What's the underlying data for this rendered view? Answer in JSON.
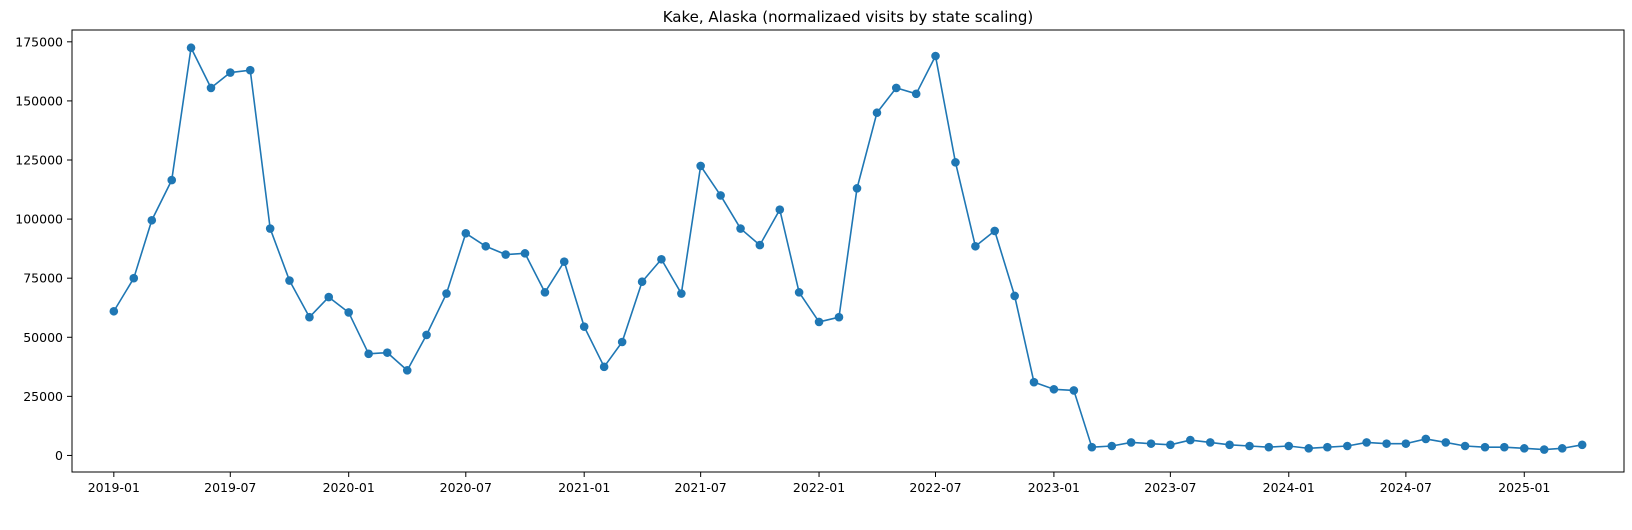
{
  "chart_data": {
    "type": "line",
    "title": "Kake, Alaska (normalizaed visits by state scaling)",
    "xlabel": "",
    "ylabel": "",
    "x_tick_labels": [
      "2019-01",
      "2019-07",
      "2020-01",
      "2020-07",
      "2021-01",
      "2021-07",
      "2022-01",
      "2022-07",
      "2023-01",
      "2023-07",
      "2024-01",
      "2024-07",
      "2025-01"
    ],
    "y_tick_labels": [
      "0",
      "25000",
      "50000",
      "75000",
      "100000",
      "125000",
      "150000",
      "175000"
    ],
    "y_ticks": [
      0,
      25000,
      50000,
      75000,
      100000,
      125000,
      150000,
      175000
    ],
    "ylim": [
      -7000,
      180000
    ],
    "xlim": [
      "2018-10-28",
      "2025-06-05"
    ],
    "grid": false,
    "legend": "none",
    "series": [
      {
        "color": "#1f77b4",
        "marker": "circle",
        "x": [
          "2019-01-01",
          "2019-02-01",
          "2019-03-01",
          "2019-04-01",
          "2019-05-01",
          "2019-06-01",
          "2019-07-01",
          "2019-08-01",
          "2019-09-01",
          "2019-10-01",
          "2019-11-01",
          "2019-12-01",
          "2020-01-01",
          "2020-02-01",
          "2020-03-01",
          "2020-04-01",
          "2020-05-01",
          "2020-06-01",
          "2020-07-01",
          "2020-08-01",
          "2020-09-01",
          "2020-10-01",
          "2020-11-01",
          "2020-12-01",
          "2021-01-01",
          "2021-02-01",
          "2021-03-01",
          "2021-04-01",
          "2021-05-01",
          "2021-06-01",
          "2021-07-01",
          "2021-08-01",
          "2021-09-01",
          "2021-10-01",
          "2021-11-01",
          "2021-12-01",
          "2022-01-01",
          "2022-02-01",
          "2022-03-01",
          "2022-04-01",
          "2022-05-01",
          "2022-06-01",
          "2022-07-01",
          "2022-08-01",
          "2022-09-01",
          "2022-10-01",
          "2022-11-01",
          "2022-12-01",
          "2023-01-01",
          "2023-02-01",
          "2023-03-01",
          "2023-04-01",
          "2023-05-01",
          "2023-06-01",
          "2023-07-01",
          "2023-08-01",
          "2023-09-01",
          "2023-10-01",
          "2023-11-01",
          "2023-12-01",
          "2024-01-01",
          "2024-02-01",
          "2024-03-01",
          "2024-04-01",
          "2024-05-01",
          "2024-06-01",
          "2024-07-01",
          "2024-08-01",
          "2024-09-01",
          "2024-10-01",
          "2024-11-01",
          "2024-12-01",
          "2025-01-01",
          "2025-02-01",
          "2025-03-01",
          "2025-04-01"
        ],
        "values": [
          61000,
          75000,
          99500,
          116500,
          172500,
          155500,
          162000,
          163000,
          96000,
          74000,
          58500,
          67000,
          60500,
          43000,
          43500,
          36000,
          51000,
          68500,
          94000,
          88500,
          85000,
          85500,
          69000,
          82000,
          54500,
          37500,
          48000,
          73500,
          83000,
          68500,
          122500,
          110000,
          96000,
          89000,
          104000,
          69000,
          56500,
          58500,
          113000,
          145000,
          155500,
          153000,
          169000,
          124000,
          88500,
          95000,
          67500,
          31000,
          28000,
          27500,
          3500,
          4000,
          5500,
          5000,
          4500,
          6500,
          5500,
          4500,
          4000,
          3500,
          4000,
          3000,
          3500,
          4000,
          5500,
          5000,
          5000,
          7000,
          5500,
          4000,
          3500,
          3500,
          3000,
          2500,
          3000,
          4500
        ]
      }
    ]
  }
}
